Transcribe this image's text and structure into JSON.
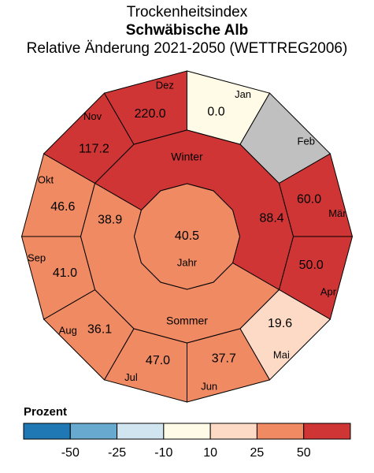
{
  "chart_data": {
    "type": "polar-heatmap",
    "title": "Trockenheitsindex",
    "subtitle": "Schwäbische Alb",
    "subtitle2": "Relative Änderung 2021-2050 (WETTREG2006)",
    "months": [
      {
        "label": "Jan",
        "value": 0.0,
        "value_text": "0.0",
        "color": "#fffbe6"
      },
      {
        "label": "Feb",
        "value": null,
        "value_text": "",
        "color": "#c0c0c0"
      },
      {
        "label": "Mär",
        "value": 60.0,
        "value_text": "60.0",
        "color": "#d03535"
      },
      {
        "label": "Apr",
        "value": 50.0,
        "value_text": "50.0",
        "color": "#d03535"
      },
      {
        "label": "Mai",
        "value": 19.6,
        "value_text": "19.6",
        "color": "#fddac6"
      },
      {
        "label": "Jun",
        "value": 37.7,
        "value_text": "37.7",
        "color": "#ef8a62"
      },
      {
        "label": "Jul",
        "value": 47.0,
        "value_text": "47.0",
        "color": "#ef8a62"
      },
      {
        "label": "Aug",
        "value": 36.1,
        "value_text": "36.1",
        "color": "#ef8a62"
      },
      {
        "label": "Sep",
        "value": 41.0,
        "value_text": "41.0",
        "color": "#ef8a62"
      },
      {
        "label": "Okt",
        "value": 46.6,
        "value_text": "46.6",
        "color": "#ef8a62"
      },
      {
        "label": "Nov",
        "value": 117.2,
        "value_text": "117.2",
        "color": "#d03535"
      },
      {
        "label": "Dez",
        "value": 220.0,
        "value_text": "220.0",
        "color": "#d03535"
      }
    ],
    "seasons": [
      {
        "label": "Winter",
        "value": 88.4,
        "value_text": "88.4",
        "color": "#d03535"
      },
      {
        "label": "Sommer",
        "value": 38.9,
        "value_text": "38.9",
        "color": "#ef8a62"
      }
    ],
    "year": {
      "label": "Jahr",
      "value": 40.5,
      "value_text": "40.5",
      "color": "#ef8a62"
    },
    "legend": {
      "title": "Prozent",
      "colors": [
        "#1f78b4",
        "#67a9cf",
        "#d1e5f0",
        "#fffbe6",
        "#fddac6",
        "#ef8a62",
        "#d03535"
      ],
      "ticks": [
        "-50",
        "-25",
        "-10",
        "10",
        "25",
        "50"
      ]
    }
  }
}
